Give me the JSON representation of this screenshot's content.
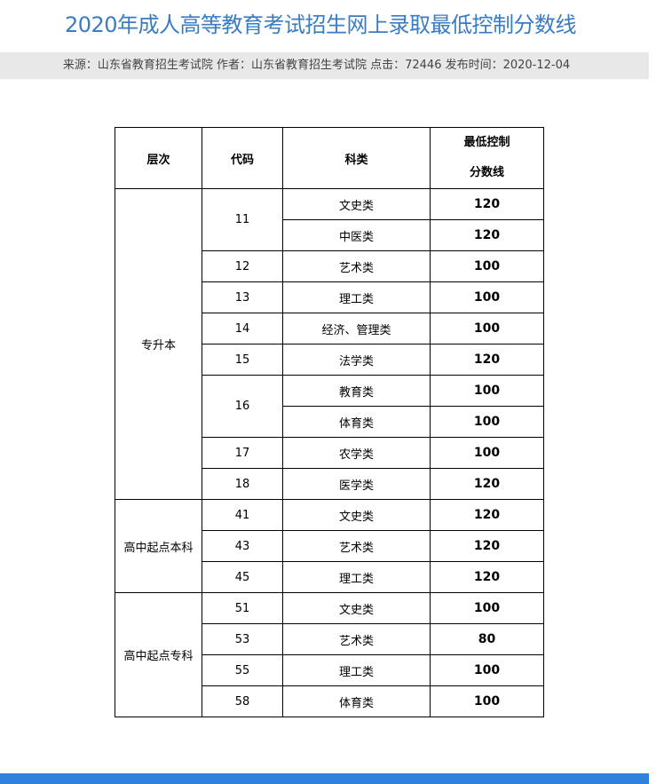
{
  "title": "2020年成人高等教育考试招生网上录取最低控制分数线",
  "meta": "来源：山东省教育招生考试院 作者：山东省教育招生考试院 点击：72446 发布时间：2020-12-04",
  "table": {
    "headers": [
      "层次",
      "代码",
      "科类",
      "最低控制",
      "分数线"
    ],
    "groups": [
      {
        "level": "专升本",
        "codes": [
          {
            "code": "11",
            "rows": [
              {
                "subject": "文史类",
                "score": "120"
              },
              {
                "subject": "中医类",
                "score": "120"
              }
            ]
          },
          {
            "code": "12",
            "rows": [
              {
                "subject": "艺术类",
                "score": "100"
              }
            ]
          },
          {
            "code": "13",
            "rows": [
              {
                "subject": "理工类",
                "score": "100"
              }
            ]
          },
          {
            "code": "14",
            "rows": [
              {
                "subject": "经济、管理类",
                "score": "100"
              }
            ]
          },
          {
            "code": "15",
            "rows": [
              {
                "subject": "法学类",
                "score": "120"
              }
            ]
          },
          {
            "code": "16",
            "rows": [
              {
                "subject": "教育类",
                "score": "100"
              },
              {
                "subject": "体育类",
                "score": "100"
              }
            ]
          },
          {
            "code": "17",
            "rows": [
              {
                "subject": "农学类",
                "score": "100"
              }
            ]
          },
          {
            "code": "18",
            "rows": [
              {
                "subject": "医学类",
                "score": "120"
              }
            ]
          }
        ]
      },
      {
        "level": "高中起点本科",
        "codes": [
          {
            "code": "41",
            "rows": [
              {
                "subject": "文史类",
                "score": "120"
              }
            ]
          },
          {
            "code": "43",
            "rows": [
              {
                "subject": "艺术类",
                "score": "120"
              }
            ]
          },
          {
            "code": "45",
            "rows": [
              {
                "subject": "理工类",
                "score": "120"
              }
            ]
          }
        ]
      },
      {
        "level": "高中起点专科",
        "codes": [
          {
            "code": "51",
            "rows": [
              {
                "subject": "文史类",
                "score": "100"
              }
            ]
          },
          {
            "code": "53",
            "rows": [
              {
                "subject": "艺术类",
                "score": "80"
              }
            ]
          },
          {
            "code": "55",
            "rows": [
              {
                "subject": "理工类",
                "score": "100"
              }
            ]
          },
          {
            "code": "58",
            "rows": [
              {
                "subject": "体育类",
                "score": "100"
              }
            ]
          }
        ]
      }
    ]
  },
  "colors": {
    "title": "#3a7cc4",
    "meta_bg": "#e8e8e8",
    "footer": "#2e82dd"
  }
}
